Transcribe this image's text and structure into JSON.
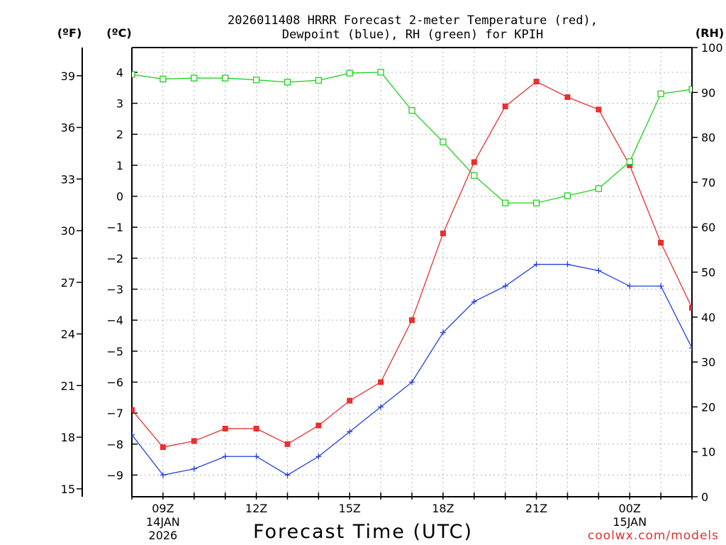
{
  "chart_data": {
    "type": "line",
    "title_line1": "2026011408 HRRR Forecast 2-meter Temperature (red),",
    "title_line2": "Dewpoint (blue), RH (green) for KPIH",
    "xlabel": "Forecast Time (UTC)",
    "credit": "coolwx.com/models",
    "units_f": "(ºF)",
    "units_c": "(ºC)",
    "units_rh": "(RH)",
    "x": [
      8,
      9,
      10,
      11,
      12,
      13,
      14,
      15,
      16,
      17,
      18,
      19,
      20,
      21,
      22,
      23,
      24,
      25,
      26
    ],
    "xlim": [
      8,
      26
    ],
    "x_ticks": [
      {
        "x": 9,
        "label": "09Z",
        "sub1": "14JAN",
        "sub2": "2026"
      },
      {
        "x": 12,
        "label": "12Z",
        "sub1": "",
        "sub2": ""
      },
      {
        "x": 15,
        "label": "15Z",
        "sub1": "",
        "sub2": ""
      },
      {
        "x": 18,
        "label": "18Z",
        "sub1": "",
        "sub2": ""
      },
      {
        "x": 21,
        "label": "21Z",
        "sub1": "",
        "sub2": ""
      },
      {
        "x": 24,
        "label": "00Z",
        "sub1": "15JAN",
        "sub2": ""
      }
    ],
    "ylim_c": [
      -9.7,
      4.8
    ],
    "y_ticks_c": [
      {
        "v": 4,
        "label": "4"
      },
      {
        "v": 3,
        "label": "3"
      },
      {
        "v": 2,
        "label": "2"
      },
      {
        "v": 1,
        "label": "1"
      },
      {
        "v": 0,
        "label": "0"
      },
      {
        "v": -1,
        "label": "−1"
      },
      {
        "v": -2,
        "label": "−2"
      },
      {
        "v": -3,
        "label": "−3"
      },
      {
        "v": -4,
        "label": "−4"
      },
      {
        "v": -5,
        "label": "−5"
      },
      {
        "v": -6,
        "label": "−6"
      },
      {
        "v": -7,
        "label": "−7"
      },
      {
        "v": -8,
        "label": "−8"
      },
      {
        "v": -9,
        "label": "−9"
      }
    ],
    "y_ticks_f": [
      {
        "v": 15,
        "label": "15"
      },
      {
        "v": 18,
        "label": "18"
      },
      {
        "v": 21,
        "label": "21"
      },
      {
        "v": 24,
        "label": "24"
      },
      {
        "v": 27,
        "label": "27"
      },
      {
        "v": 30,
        "label": "30"
      },
      {
        "v": 33,
        "label": "33"
      },
      {
        "v": 36,
        "label": "36"
      },
      {
        "v": 39,
        "label": "39"
      }
    ],
    "ylim_rh": [
      0,
      100
    ],
    "y_ticks_rh": [
      {
        "v": 0,
        "label": "0"
      },
      {
        "v": 10,
        "label": "10"
      },
      {
        "v": 20,
        "label": "20"
      },
      {
        "v": 30,
        "label": "30"
      },
      {
        "v": 40,
        "label": "40"
      },
      {
        "v": 50,
        "label": "50"
      },
      {
        "v": 60,
        "label": "60"
      },
      {
        "v": 70,
        "label": "70"
      },
      {
        "v": 80,
        "label": "80"
      },
      {
        "v": 90,
        "label": "90"
      },
      {
        "v": 100,
        "label": "100"
      }
    ],
    "series": [
      {
        "name": "Temperature",
        "axis": "c",
        "color": "#e83030",
        "marker": "filled-square",
        "values": [
          -6.9,
          -8.1,
          -7.9,
          -7.5,
          -7.5,
          -8.0,
          -7.4,
          -6.6,
          -6.0,
          -4.0,
          -1.2,
          1.1,
          2.9,
          3.7,
          3.2,
          2.8,
          1.0,
          -1.5,
          -3.6
        ]
      },
      {
        "name": "Dewpoint",
        "axis": "c",
        "color": "#2040e0",
        "marker": "plus",
        "values": [
          -7.7,
          -9.0,
          -8.8,
          -8.4,
          -8.4,
          -9.0,
          -8.4,
          -7.6,
          -6.8,
          -6.0,
          -4.4,
          -3.4,
          -2.9,
          -2.2,
          -2.2,
          -2.4,
          -2.9,
          -2.9,
          -4.9
        ]
      },
      {
        "name": "RH",
        "axis": "rh",
        "color": "#20d020",
        "marker": "open-square",
        "values": [
          94,
          93,
          93.2,
          93.2,
          92.8,
          92.3,
          92.7,
          94.3,
          94.5,
          86,
          79,
          71.5,
          65.4,
          65.4,
          67,
          68.6,
          74.6,
          89.7,
          90.7
        ]
      }
    ],
    "grid": true
  }
}
